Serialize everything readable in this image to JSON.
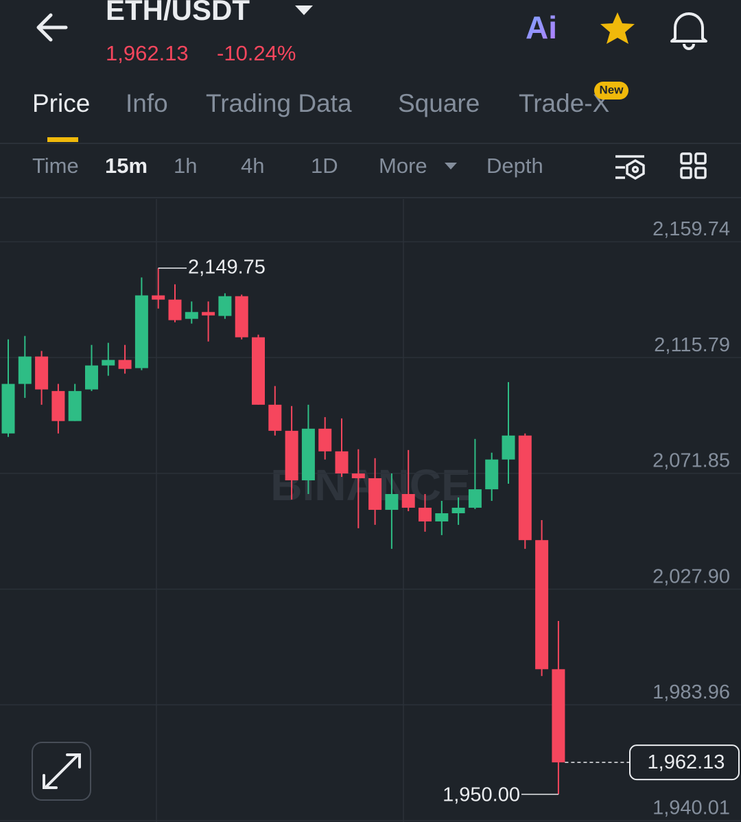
{
  "header": {
    "pair": "ETH/USDT",
    "price": "1,962.13",
    "change": "-10.24%",
    "ai_label": "Ai"
  },
  "tabs": {
    "items": [
      "Price",
      "Info",
      "Trading Data",
      "Square",
      "Trade-X"
    ],
    "badge": "New"
  },
  "intervals": {
    "items": [
      "Time",
      "15m",
      "1h",
      "4h",
      "1D",
      "More",
      "Depth"
    ]
  },
  "chart_data": {
    "type": "candlestick",
    "watermark": "BINANCE",
    "up_color": "#2ebd85",
    "down_color": "#f6465d",
    "open": [
      2087.0,
      2105.8,
      2116.2,
      2103.1,
      2091.7,
      2103.7,
      2112.8,
      2114.9,
      2111.8,
      2139.4,
      2137.8,
      2130.5,
      2133.1,
      2131.6,
      2139.1,
      2123.5,
      2097.9,
      2088.0,
      2069.2,
      2088.8,
      2080.2,
      2071.8,
      2070.0,
      2058.0,
      2064.0,
      2058.8,
      2053.6,
      2056.7,
      2058.8,
      2065.8,
      2077.1,
      2086.2,
      2046.5,
      1997.5
    ],
    "high": [
      2122.7,
      2124.0,
      2118.3,
      2105.8,
      2105.8,
      2120.6,
      2121.4,
      2120.6,
      2146.2,
      2149.75,
      2143.6,
      2137.1,
      2137.1,
      2140.2,
      2139.7,
      2124.5,
      2105.0,
      2097.4,
      2097.9,
      2093.2,
      2092.7,
      2081.0,
      2077.6,
      2071.8,
      2080.7,
      2064.0,
      2061.4,
      2062.7,
      2084.9,
      2079.7,
      2106.5,
      2087.0,
      2054.1,
      2015.8
    ],
    "low": [
      2085.7,
      2100.5,
      2097.9,
      2087.0,
      2091.7,
      2103.1,
      2108.9,
      2109.7,
      2111.0,
      2134.4,
      2129.2,
      2128.7,
      2121.9,
      2130.5,
      2122.7,
      2097.9,
      2086.2,
      2061.9,
      2064.0,
      2077.1,
      2070.5,
      2051.0,
      2052.3,
      2043.2,
      2057.5,
      2049.7,
      2048.4,
      2052.3,
      2058.3,
      2061.4,
      2067.9,
      2043.2,
      1994.9,
      1950.0
    ],
    "close": [
      2105.8,
      2116.2,
      2103.7,
      2091.7,
      2103.1,
      2112.8,
      2114.9,
      2111.5,
      2139.4,
      2137.8,
      2130.0,
      2133.1,
      2131.8,
      2139.1,
      2123.5,
      2097.9,
      2088.0,
      2069.2,
      2088.8,
      2080.2,
      2071.8,
      2070.0,
      2058.0,
      2064.0,
      2058.8,
      2053.6,
      2056.7,
      2058.8,
      2065.8,
      2077.1,
      2086.2,
      2046.5,
      1997.5,
      1962.13
    ],
    "ylim": [
      1939.5,
      2176.0
    ],
    "yticks": [
      {
        "value": 2159.74,
        "label": "2,159.74"
      },
      {
        "value": 2115.79,
        "label": "2,115.79"
      },
      {
        "value": 2071.85,
        "label": "2,071.85"
      },
      {
        "value": 2027.9,
        "label": "2,027.90"
      },
      {
        "value": 1983.96,
        "label": "1,983.96"
      },
      {
        "value": 1940.01,
        "label": "1,940.01"
      }
    ],
    "high_marker": {
      "value": 2149.75,
      "label": "2,149.75"
    },
    "low_marker": {
      "value": 1950.0,
      "label": "1,950.00"
    },
    "last_price": {
      "value": 1962.13,
      "label": "1,962.13"
    },
    "grid": true
  }
}
